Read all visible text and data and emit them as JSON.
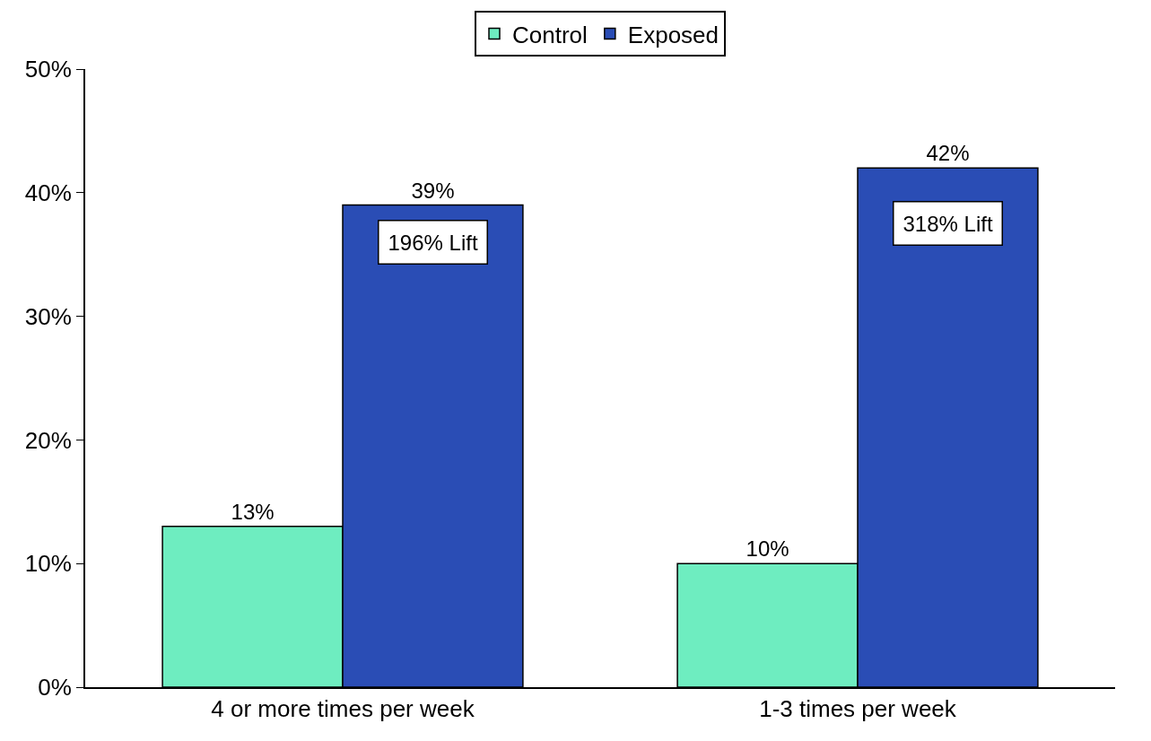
{
  "chart_data": {
    "type": "bar",
    "categories": [
      "4 or more times per week",
      "1-3 times per week"
    ],
    "series": [
      {
        "name": "Control",
        "color": "#6eedc0",
        "values": [
          13,
          10
        ]
      },
      {
        "name": "Exposed",
        "color": "#2a4db5",
        "values": [
          39,
          42
        ]
      }
    ],
    "ylim": [
      0,
      50
    ],
    "yticks": [
      {
        "value": 0,
        "label": "0%"
      },
      {
        "value": 10,
        "label": "10%"
      },
      {
        "value": 20,
        "label": "20%"
      },
      {
        "value": 30,
        "label": "30%"
      },
      {
        "value": 40,
        "label": "40%"
      },
      {
        "value": 50,
        "label": "50%"
      }
    ],
    "value_labels": [
      [
        "13%",
        "10%"
      ],
      [
        "39%",
        "42%"
      ]
    ],
    "annotations": [
      {
        "text": "196% Lift",
        "x": "4 or more times per week",
        "y": 36
      },
      {
        "text": "318% Lift",
        "x": "1-3 times per week",
        "y": 37.5
      }
    ],
    "grid": false,
    "legend": "top"
  }
}
